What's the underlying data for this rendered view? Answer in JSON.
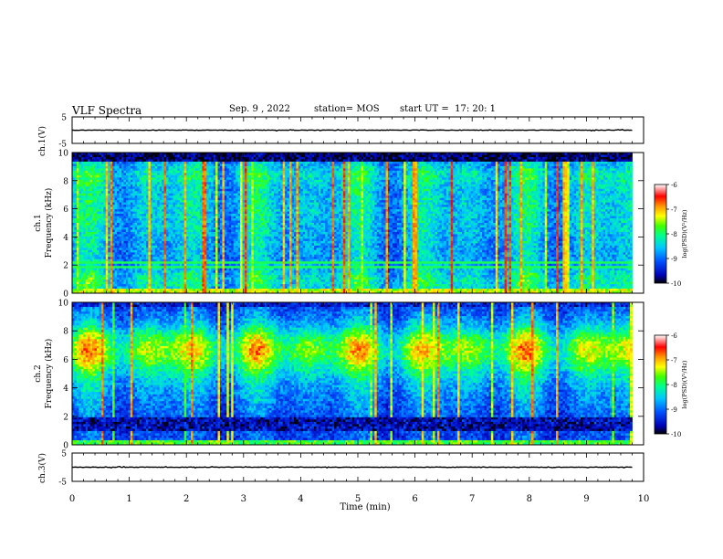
{
  "header": {
    "title": "VLF Spectra",
    "date": "Sep. 9 , 2022",
    "station": "station= MOS",
    "start_ut": "start UT =  17: 20: 1"
  },
  "chart_data": [
    {
      "type": "line",
      "panel": "ch1-waveform",
      "ylabel": "ch.1(V)",
      "ylim": [
        -5,
        5
      ],
      "yticks": [
        "5",
        "-5"
      ],
      "series": [
        {
          "x": [
            0,
            9.8
          ],
          "values": [
            0,
            0
          ]
        }
      ]
    },
    {
      "type": "heatmap",
      "panel": "ch1-spectrogram",
      "ylabel_channel": "ch.1",
      "ylabel": "Frequency (kHz)",
      "ylim": [
        0,
        10
      ],
      "yticks": [
        "0",
        "2",
        "4",
        "6",
        "8",
        "10"
      ],
      "xlim": [
        0,
        10
      ],
      "data_end_min": 9.8,
      "colorbar": {
        "label": "log(PSD)(V²/Hz)",
        "range": [
          -10,
          -6
        ],
        "ticks": [
          "-6",
          "-7",
          "-8",
          "-9",
          "-10"
        ]
      },
      "dominant_features": [
        "broadband vertical spikes",
        "emission band 0–2 kHz",
        "dark cutoff above ~9.5 kHz"
      ]
    },
    {
      "type": "heatmap",
      "panel": "ch2-spectrogram",
      "ylabel_channel": "ch.2",
      "ylabel": "Frequency (kHz)",
      "ylim": [
        0,
        10
      ],
      "yticks": [
        "0",
        "2",
        "4",
        "6",
        "8",
        "10"
      ],
      "xlim": [
        0,
        10
      ],
      "data_end_min": 9.8,
      "colorbar": {
        "label": "log(PSD)(V²/Hz)",
        "range": [
          -10,
          -6
        ],
        "ticks": [
          "-6",
          "-7",
          "-8",
          "-9",
          "-10"
        ]
      },
      "dominant_features": [
        "strong band 5–8 kHz peaking near 6.5 kHz",
        "dark region 1–2 kHz"
      ]
    },
    {
      "type": "line",
      "panel": "ch3-waveform",
      "ylabel": "ch.3(V)",
      "ylim": [
        -5,
        5
      ],
      "yticks": [
        "5",
        "-5"
      ],
      "xlabel": "Time (min)",
      "xlim": [
        0,
        10
      ],
      "xticks": [
        "0",
        "1",
        "2",
        "3",
        "4",
        "5",
        "6",
        "7",
        "8",
        "9",
        "10"
      ],
      "series": [
        {
          "x": [
            0,
            9.8
          ],
          "values": [
            0,
            0
          ]
        }
      ]
    }
  ],
  "colors": {
    "colormap": [
      "#000000",
      "#0000b4",
      "#0050ff",
      "#00c8ff",
      "#00ff90",
      "#40ff00",
      "#ffff00",
      "#ff9600",
      "#ff0000",
      "#ffffff"
    ]
  }
}
